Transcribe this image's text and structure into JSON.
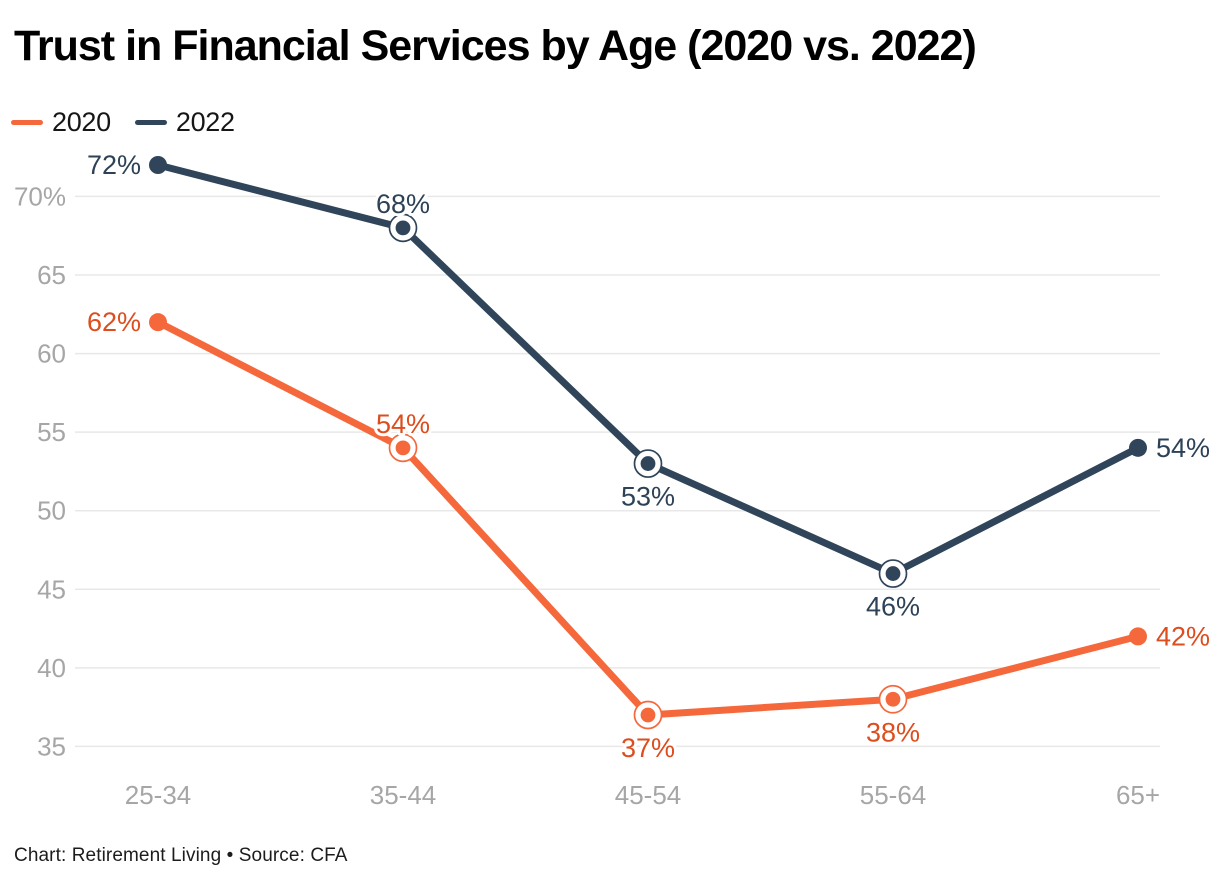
{
  "header": {
    "title": "Trust in Financial Services by Age (2020 vs. 2022)"
  },
  "legend": {
    "items": [
      {
        "label": "2020",
        "color": "#f5683c"
      },
      {
        "label": "2022",
        "color": "#30455a"
      }
    ]
  },
  "footer": {
    "credit": "Chart: Retirement Living • Source: CFA"
  },
  "chart_data": {
    "type": "line",
    "title": "Trust in Financial Services by Age (2020 vs. 2022)",
    "categories": [
      "25-34",
      "35-44",
      "45-54",
      "55-64",
      "65+"
    ],
    "series": [
      {
        "name": "2020",
        "color": "#f5683c",
        "label_color": "#dd4d1d",
        "values": [
          62,
          54,
          37,
          38,
          42
        ],
        "point_labels": [
          "62%",
          "54%",
          "37%",
          "38%",
          "42%"
        ],
        "label_positions": [
          "left",
          "above",
          "below",
          "below",
          "right"
        ],
        "marker_styles": [
          "dot",
          "ring",
          "ring",
          "ring",
          "dot"
        ]
      },
      {
        "name": "2022",
        "color": "#30455a",
        "label_color": "#2d4257",
        "values": [
          72,
          68,
          53,
          46,
          54
        ],
        "point_labels": [
          "72%",
          "68%",
          "53%",
          "46%",
          "54%"
        ],
        "label_positions": [
          "left",
          "above",
          "below",
          "below",
          "right"
        ],
        "marker_styles": [
          "dot",
          "ring",
          "ring",
          "ring",
          "dot"
        ]
      }
    ],
    "yticks": [
      {
        "value": 70,
        "label": "70%"
      },
      {
        "value": 65,
        "label": "65"
      },
      {
        "value": 60,
        "label": "60"
      },
      {
        "value": 55,
        "label": "55"
      },
      {
        "value": 50,
        "label": "50"
      },
      {
        "value": 45,
        "label": "45"
      },
      {
        "value": 40,
        "label": "40"
      },
      {
        "value": 35,
        "label": "35"
      }
    ],
    "xlabel": "",
    "ylabel": "",
    "ylim": [
      35,
      72
    ],
    "grid": true,
    "legend_position": "top-left",
    "tick_color": "#a6a6a6",
    "grid_color": "#e8e8e8"
  }
}
